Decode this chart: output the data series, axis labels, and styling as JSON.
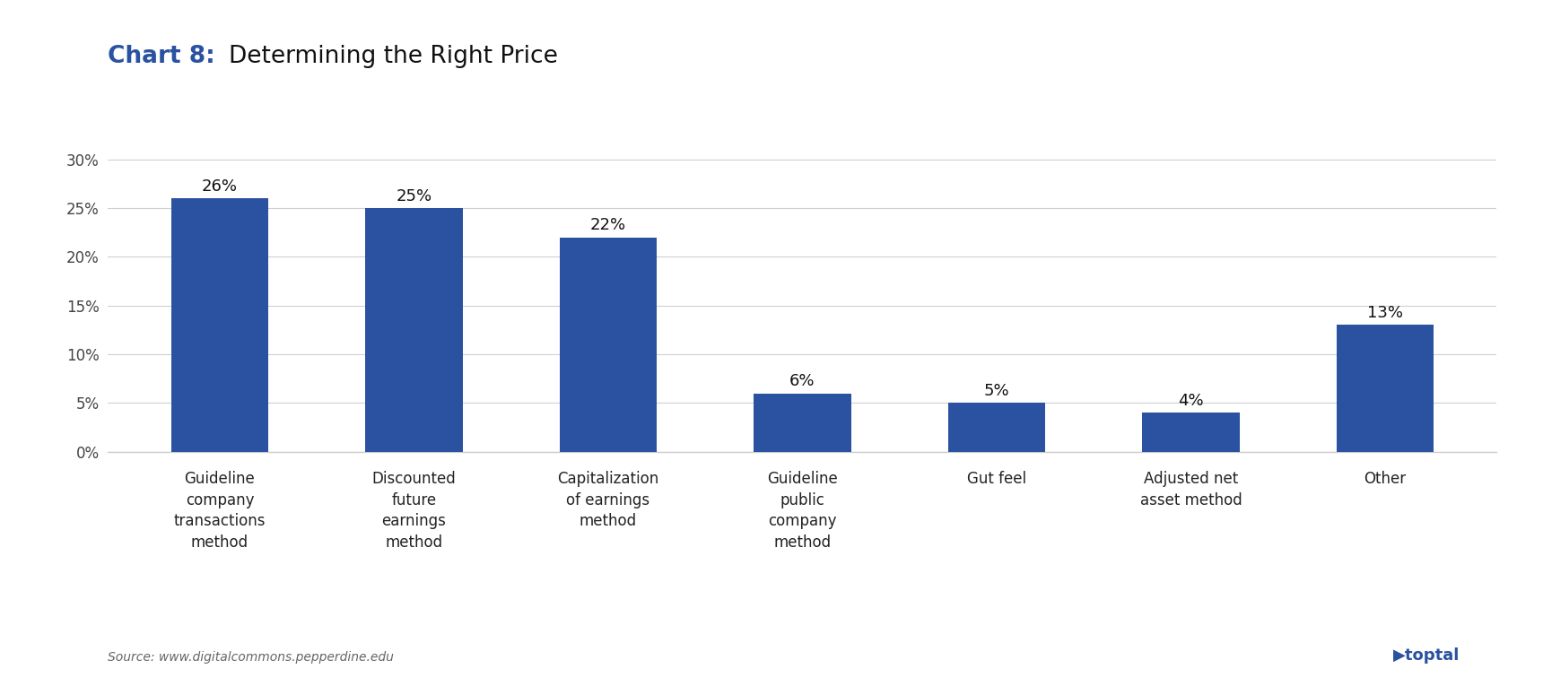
{
  "title_chart": "Chart 8:",
  "title_main": "Determining the Right Price",
  "categories": [
    "Guideline\ncompany\ntransactions\nmethod",
    "Discounted\nfuture\nearnings\nmethod",
    "Capitalization\nof earnings\nmethod",
    "Guideline\npublic\ncompany\nmethod",
    "Gut feel",
    "Adjusted net\nasset method",
    "Other"
  ],
  "values": [
    0.26,
    0.25,
    0.22,
    0.06,
    0.05,
    0.04,
    0.13
  ],
  "labels": [
    "26%",
    "25%",
    "22%",
    "6%",
    "5%",
    "4%",
    "13%"
  ],
  "bar_color": "#2A52A0",
  "yticks": [
    0.0,
    0.05,
    0.1,
    0.15,
    0.2,
    0.25,
    0.3
  ],
  "ytick_labels": [
    "0%",
    "5%",
    "10%",
    "15%",
    "20%",
    "25%",
    "30%"
  ],
  "ylim": [
    0,
    0.335
  ],
  "source_text": "Source: www.digitalcommons.pepperdine.edu",
  "background_color": "#ffffff",
  "grid_color": "#d0d0d0",
  "title_chart_color": "#2A52A0",
  "title_main_color": "#111111",
  "bar_width": 0.5,
  "title_fontsize": 19,
  "label_fontsize": 13,
  "tick_fontsize": 12,
  "source_fontsize": 10,
  "xtick_fontsize": 12
}
